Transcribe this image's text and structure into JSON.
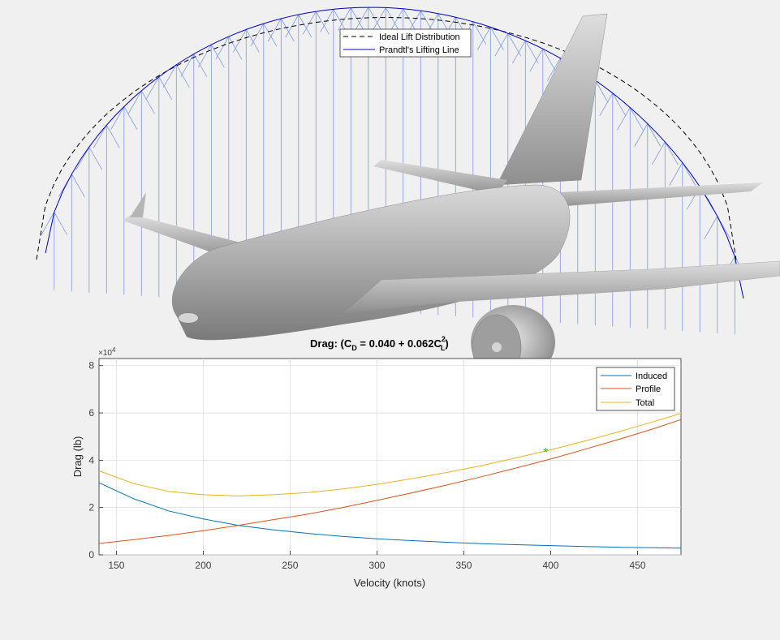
{
  "top_figure": {
    "legend": {
      "ideal_label": "Ideal Lift Distribution",
      "prandtl_label": "Prandtl's Lifting Line"
    },
    "colors": {
      "ideal": "#000000",
      "prandtl": "#0000cc",
      "vectors": "#7d9ae8",
      "aircraft": "#a8a8a8"
    }
  },
  "chart_data": {
    "type": "line",
    "title_main": "Drag: (C",
    "title_sub_d": "D",
    "title_mid": " = 0.040 + 0.062C",
    "title_sup_2": "2",
    "title_sub_l": "L",
    "title_end": ")",
    "xlabel": "Velocity (knots)",
    "ylabel": "Drag (lb)",
    "y_exponent_label": "×10",
    "y_exponent_power": "4",
    "xlim": [
      140,
      475
    ],
    "ylim": [
      0,
      8.3
    ],
    "xticks": [
      150,
      200,
      250,
      300,
      350,
      400,
      450
    ],
    "yticks": [
      0,
      2,
      4,
      6,
      8
    ],
    "grid": true,
    "legend_position": "top-right",
    "x": [
      140,
      160,
      180,
      200,
      220,
      240,
      260,
      280,
      300,
      320,
      340,
      360,
      380,
      400,
      420,
      440,
      460,
      475
    ],
    "series": [
      {
        "name": "Induced",
        "color": "#0072bd",
        "values": [
          3.05,
          2.37,
          1.86,
          1.52,
          1.25,
          1.06,
          0.91,
          0.78,
          0.68,
          0.6,
          0.53,
          0.47,
          0.43,
          0.39,
          0.35,
          0.32,
          0.3,
          0.28
        ]
      },
      {
        "name": "Profile",
        "color": "#d95319",
        "values": [
          0.48,
          0.64,
          0.82,
          1.02,
          1.24,
          1.48,
          1.72,
          2.0,
          2.3,
          2.62,
          2.95,
          3.3,
          3.67,
          4.05,
          4.47,
          4.9,
          5.35,
          5.72
        ]
      },
      {
        "name": "Total",
        "color": "#edb120",
        "values": [
          3.55,
          3.01,
          2.68,
          2.54,
          2.49,
          2.54,
          2.63,
          2.78,
          2.98,
          3.22,
          3.48,
          3.77,
          4.1,
          4.44,
          4.82,
          5.22,
          5.65,
          5.98
        ]
      }
    ],
    "marker": {
      "x": 397,
      "y": 4.35,
      "symbol": "*",
      "color": "#22cc22"
    }
  }
}
